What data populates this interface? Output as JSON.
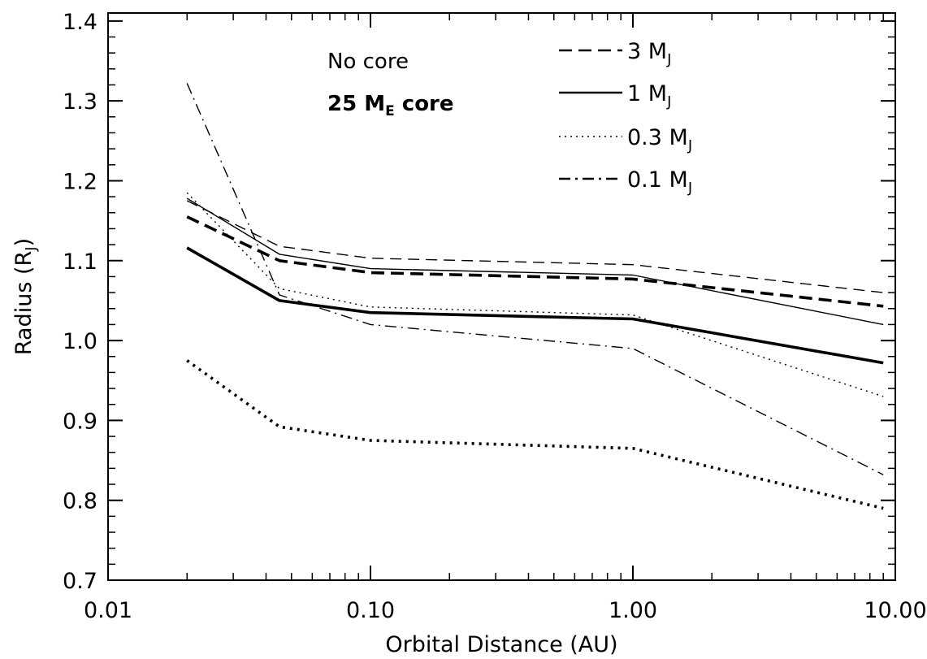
{
  "chart_data": {
    "type": "line",
    "xscale": "log",
    "xlim": [
      0.01,
      10.0
    ],
    "ylim": [
      0.7,
      1.41
    ],
    "xlabel": "Orbital Distance (AU)",
    "ylabel": "Radius (R_J)",
    "ylabel_main": "Radius (R",
    "ylabel_sub": "J",
    "ylabel_close": ")",
    "xticks": [
      {
        "value": 0.01,
        "label": "0.01"
      },
      {
        "value": 0.1,
        "label": "0.10"
      },
      {
        "value": 1.0,
        "label": "1.00"
      },
      {
        "value": 10.0,
        "label": "10.00"
      }
    ],
    "yticks": [
      {
        "value": 0.7,
        "label": "0.7"
      },
      {
        "value": 0.8,
        "label": "0.8"
      },
      {
        "value": 0.9,
        "label": "0.9"
      },
      {
        "value": 1.0,
        "label": "1.0"
      },
      {
        "value": 1.1,
        "label": "1.1"
      },
      {
        "value": 1.2,
        "label": "1.2"
      },
      {
        "value": 1.3,
        "label": "1.3"
      },
      {
        "value": 1.4,
        "label": "1.4"
      }
    ],
    "annotations": {
      "thin": "No core",
      "thick_main": "25 M",
      "thick_sub": "E",
      "thick_suffix": " core"
    },
    "legend": [
      {
        "main": "3 M",
        "sub": "J",
        "style": "dashed"
      },
      {
        "main": "1 M",
        "sub": "J",
        "style": "solid"
      },
      {
        "main": "0.3 M",
        "sub": "J",
        "style": "dotted"
      },
      {
        "main": "0.1 M",
        "sub": "J",
        "style": "dashdot"
      }
    ],
    "x": [
      0.02,
      0.045,
      0.1,
      1.0,
      9.0
    ],
    "series": [
      {
        "mass": "3 M_J",
        "core": "No core",
        "style": "dashed",
        "weight": "thin",
        "values": [
          1.175,
          1.118,
          1.103,
          1.095,
          1.06
        ]
      },
      {
        "mass": "1 M_J",
        "core": "No core",
        "style": "solid",
        "weight": "thin",
        "values": [
          1.178,
          1.108,
          1.09,
          1.082,
          1.02
        ]
      },
      {
        "mass": "0.3 M_J",
        "core": "No core",
        "style": "dotted",
        "weight": "thin",
        "values": [
          1.185,
          1.065,
          1.042,
          1.032,
          0.93
        ]
      },
      {
        "mass": "0.1 M_J",
        "core": "No core",
        "style": "dashdot",
        "weight": "thin",
        "values": [
          1.322,
          1.057,
          1.02,
          0.99,
          0.832
        ]
      },
      {
        "mass": "3 M_J",
        "core": "25 M_E core",
        "style": "dashed",
        "weight": "thick",
        "values": [
          1.155,
          1.1,
          1.085,
          1.077,
          1.043
        ]
      },
      {
        "mass": "1 M_J",
        "core": "25 M_E core",
        "style": "solid",
        "weight": "thick",
        "values": [
          1.116,
          1.05,
          1.035,
          1.027,
          0.972
        ]
      },
      {
        "mass": "0.3 M_J",
        "core": "25 M_E core",
        "style": "dotted",
        "weight": "thick",
        "values": [
          0.975,
          0.892,
          0.875,
          0.865,
          0.79
        ]
      }
    ]
  }
}
